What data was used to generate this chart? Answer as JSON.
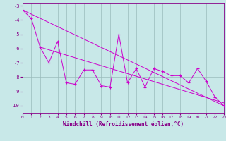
{
  "x_data": [
    0,
    1,
    2,
    3,
    4,
    5,
    6,
    7,
    8,
    9,
    10,
    11,
    12,
    13,
    14,
    15,
    16,
    17,
    18,
    19,
    20,
    21,
    22,
    23
  ],
  "y_data": [
    -3.3,
    -3.9,
    -5.9,
    -7.0,
    -5.5,
    -8.4,
    -8.5,
    -7.5,
    -7.5,
    -8.6,
    -8.7,
    -5.0,
    -8.4,
    -7.4,
    -8.7,
    -7.4,
    -7.6,
    -7.9,
    -7.9,
    -8.4,
    -7.4,
    -8.3,
    -9.4,
    -10.0
  ],
  "line_color": "#cc00cc",
  "bg_color": "#c8e8e8",
  "grid_color": "#99bbbb",
  "axis_color": "#880088",
  "xlabel": "Windchill (Refroidissement éolien,°C)",
  "xlim": [
    0,
    23
  ],
  "ylim": [
    -10.5,
    -2.8
  ],
  "yticks": [
    -10,
    -9,
    -8,
    -7,
    -6,
    -5,
    -4,
    -3
  ],
  "xticks": [
    0,
    1,
    2,
    3,
    4,
    5,
    6,
    7,
    8,
    9,
    10,
    11,
    12,
    13,
    14,
    15,
    16,
    17,
    18,
    19,
    20,
    21,
    22,
    23
  ],
  "trend1_x": [
    0,
    23
  ],
  "trend1_y": [
    -3.3,
    -10.0
  ],
  "trend2_x": [
    2,
    23
  ],
  "trend2_y": [
    -5.9,
    -9.8
  ],
  "marker": "+"
}
